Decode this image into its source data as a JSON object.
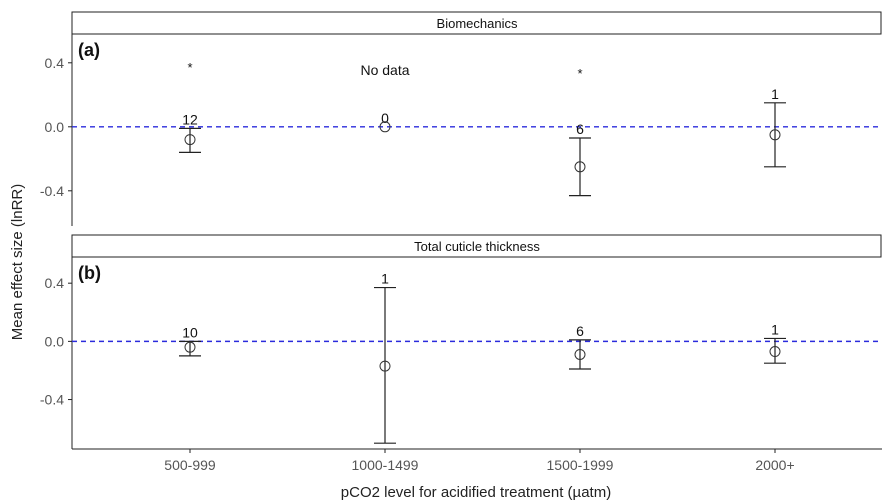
{
  "chart_data": {
    "type": "scatter",
    "subtype": "point-with-error-bars",
    "ylabel": "Mean effect size (lnRR)",
    "xlabel": "pCO2 level for acidified treatment (µatm)",
    "categories": [
      "500-999",
      "1000-1499",
      "1500-1999",
      "2000+"
    ],
    "ylim": [
      -0.7,
      0.58
    ],
    "yticks": [
      {
        "value": 0.4,
        "label": "0.4"
      },
      {
        "value": 0.0,
        "label": "0.0"
      },
      {
        "value": -0.4,
        "label": "-0.4"
      }
    ],
    "reference_line": {
      "value": 0,
      "style": "dashed",
      "color": "#2b2bdc"
    },
    "grid": false,
    "panels": [
      {
        "strip": "Biomechanics",
        "tag": "(a)",
        "ylim": [
          -0.62,
          0.58
        ],
        "points": [
          {
            "category": "500-999",
            "mean": -0.08,
            "lower": -0.16,
            "upper": -0.01,
            "n": "12",
            "mark": "*"
          },
          {
            "category": "1000-1499",
            "mean": 0.0,
            "lower": null,
            "upper": null,
            "n": "0",
            "mark": ""
          },
          {
            "category": "1500-1999",
            "mean": -0.25,
            "lower": -0.43,
            "upper": -0.07,
            "n": "6",
            "mark": "*"
          },
          {
            "category": "2000+",
            "mean": -0.05,
            "lower": -0.25,
            "upper": 0.15,
            "n": "1",
            "mark": ""
          }
        ],
        "annotation": "No data"
      },
      {
        "strip": "Total cuticle thickness",
        "tag": "(b)",
        "ylim": [
          -0.74,
          0.58
        ],
        "points": [
          {
            "category": "500-999",
            "mean": -0.04,
            "lower": -0.1,
            "upper": 0.0,
            "n": "10",
            "mark": ""
          },
          {
            "category": "1000-1499",
            "mean": -0.17,
            "lower": -0.7,
            "upper": 0.37,
            "n": "1",
            "mark": ""
          },
          {
            "category": "1500-1999",
            "mean": -0.09,
            "lower": -0.19,
            "upper": 0.01,
            "n": "6",
            "mark": ""
          },
          {
            "category": "2000+",
            "mean": -0.07,
            "lower": -0.15,
            "upper": 0.02,
            "n": "1",
            "mark": ""
          }
        ],
        "annotation": ""
      }
    ]
  }
}
